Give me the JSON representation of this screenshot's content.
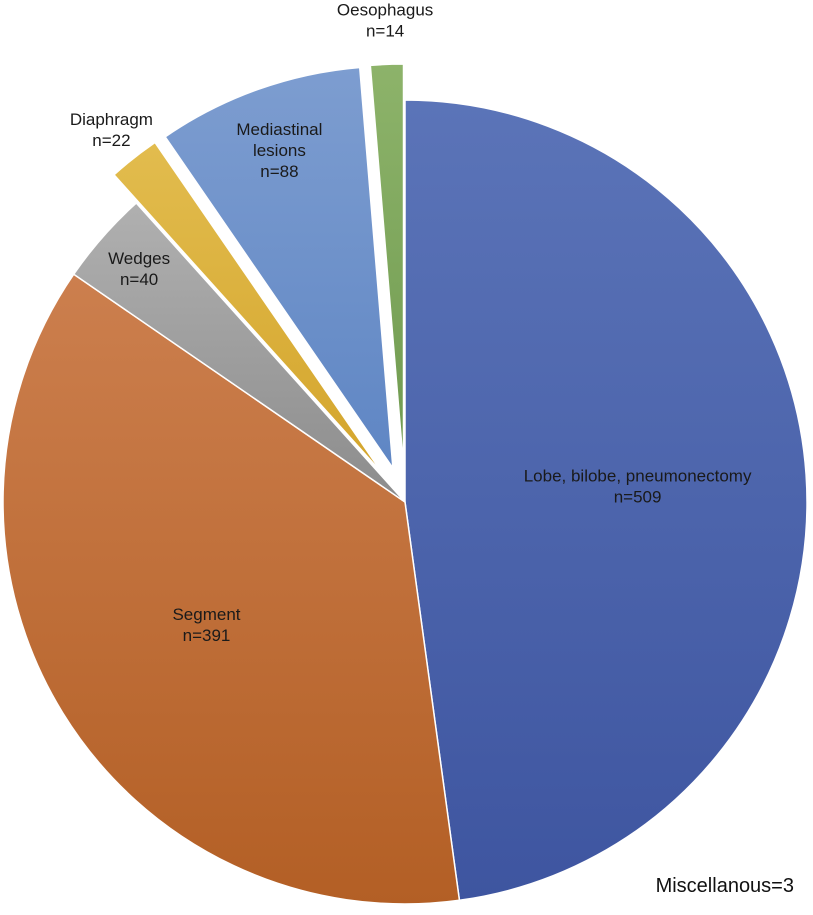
{
  "chart_data": {
    "type": "pie",
    "title": "",
    "start_angle_deg": 0,
    "direction": "clockwise",
    "slices": [
      {
        "label": "Lobe, bilobe, pneumonectomy",
        "count_text": "n=509",
        "value": 509,
        "color_top": "#5b74b8",
        "color_bottom": "#3e55a0",
        "exploded": false
      },
      {
        "label": "Segment",
        "count_text": "n=391",
        "value": 391,
        "color_top": "#cc7f4e",
        "color_bottom": "#b35f25",
        "exploded": false
      },
      {
        "label": "Wedges",
        "count_text": "n=40",
        "value": 40,
        "color_top": "#b0b0b0",
        "color_bottom": "#8c8c8c",
        "exploded": false
      },
      {
        "label": "Diaphragm",
        "count_text": "n=22",
        "value": 22,
        "color_top": "#e2bc4e",
        "color_bottom": "#d4a52c",
        "exploded": true
      },
      {
        "label": "Mediastinal\nlesions",
        "count_text": "n=88",
        "value": 88,
        "color_top": "#7d9dd0",
        "color_bottom": "#5f86c4",
        "exploded": true
      },
      {
        "label": "Oesophagus",
        "count_text": "n=14",
        "value": 14,
        "color_top": "#8db36a",
        "color_bottom": "#6f9a4f",
        "exploded": true
      }
    ],
    "annotation": "Miscellanous=3"
  }
}
